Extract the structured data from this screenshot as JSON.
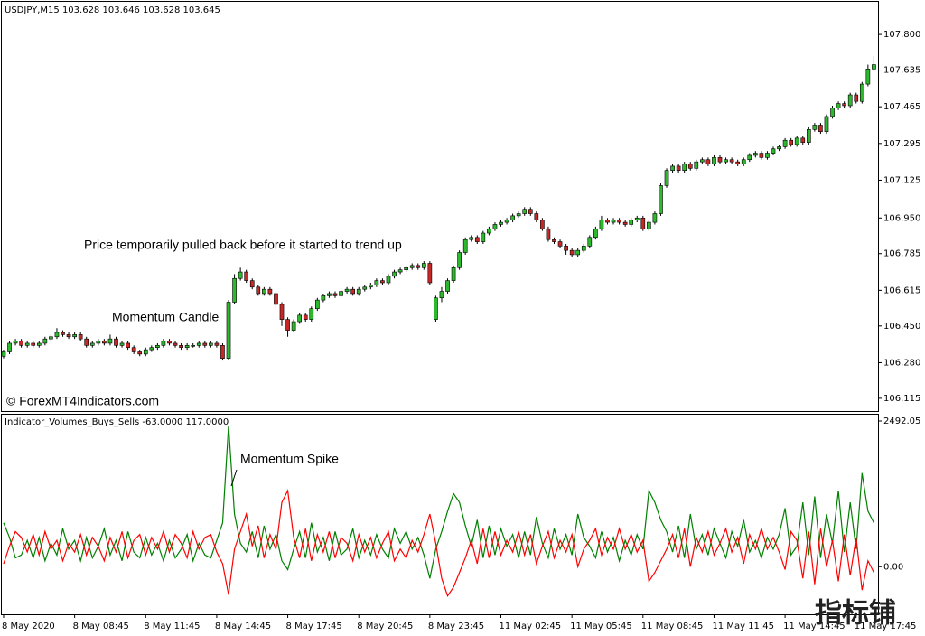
{
  "chart_data": [
    {
      "type": "candlestick",
      "title": "USDJPY,M15  103.628 103.646 103.628 103.645",
      "annotations": [
        "Price temporarily pulled back before it started to trend up",
        "Momentum Candle"
      ],
      "copyright": "© ForexMT4Indicators.com",
      "up_color": "#2eb82e",
      "down_color": "#c62828",
      "xlim": [
        -0.3,
        147.7
      ],
      "ylim": [
        106.056,
        107.951
      ],
      "yticks": [
        {
          "value": 107.8,
          "label": "107.800"
        },
        107.635,
        107.465,
        107.295,
        107.125,
        {
          "value": 106.95,
          "label": "106.950"
        },
        106.785,
        106.615,
        {
          "value": 106.45,
          "label": "106.450"
        },
        {
          "value": 106.28,
          "label": "106.280"
        },
        106.115
      ],
      "open": [
        106.31,
        106.33,
        106.37,
        106.38,
        106.36,
        106.37,
        106.36,
        106.37,
        106.39,
        106.4,
        106.42,
        106.41,
        106.4,
        106.41,
        106.39,
        106.36,
        106.37,
        106.38,
        106.37,
        106.39,
        106.36,
        106.37,
        106.35,
        106.33,
        106.32,
        106.34,
        106.35,
        106.36,
        106.38,
        106.37,
        106.36,
        106.35,
        106.36,
        106.36,
        106.37,
        106.36,
        106.37,
        106.36,
        106.3,
        106.56,
        106.67,
        106.7,
        106.66,
        106.63,
        106.6,
        106.62,
        106.6,
        106.55,
        106.48,
        106.43,
        106.47,
        106.5,
        106.48,
        106.53,
        106.57,
        106.59,
        106.6,
        106.59,
        106.61,
        106.62,
        106.6,
        106.62,
        106.63,
        106.64,
        106.66,
        106.65,
        106.68,
        106.7,
        106.71,
        106.72,
        106.73,
        106.72,
        106.74,
        106.48,
        106.58,
        106.61,
        106.66,
        106.72,
        106.79,
        106.85,
        106.86,
        106.84,
        106.88,
        106.9,
        106.92,
        106.93,
        106.94,
        106.96,
        106.97,
        106.99,
        106.97,
        106.94,
        106.9,
        106.85,
        106.84,
        106.82,
        106.8,
        106.78,
        106.8,
        106.82,
        106.86,
        106.9,
        106.94,
        106.93,
        106.94,
        106.93,
        106.92,
        106.94,
        106.95,
        106.9,
        106.93,
        106.97,
        107.1,
        107.17,
        107.19,
        107.17,
        107.2,
        107.18,
        107.21,
        107.22,
        107.2,
        107.23,
        107.21,
        107.22,
        107.21,
        107.2,
        107.22,
        107.24,
        107.25,
        107.23,
        107.25,
        107.27,
        107.28,
        107.31,
        107.29,
        107.32,
        107.3,
        107.36,
        107.38,
        107.35,
        107.42,
        107.46,
        107.48,
        107.47,
        107.52,
        107.49,
        107.57,
        107.64
      ],
      "high": [
        106.34,
        106.38,
        106.39,
        106.39,
        106.38,
        106.38,
        106.38,
        106.4,
        106.41,
        106.44,
        106.43,
        106.42,
        106.42,
        106.42,
        106.4,
        106.38,
        106.39,
        106.39,
        106.41,
        106.4,
        106.38,
        106.38,
        106.36,
        106.34,
        106.35,
        106.36,
        106.37,
        106.39,
        106.39,
        106.38,
        106.37,
        106.37,
        106.37,
        106.38,
        106.38,
        106.38,
        106.38,
        106.37,
        106.57,
        106.69,
        106.72,
        106.71,
        106.67,
        106.64,
        106.63,
        106.63,
        106.61,
        106.56,
        106.49,
        106.48,
        106.51,
        106.51,
        106.54,
        106.58,
        106.6,
        106.61,
        106.61,
        106.62,
        106.63,
        106.63,
        106.63,
        106.64,
        106.65,
        106.67,
        106.67,
        106.69,
        106.71,
        106.72,
        106.73,
        106.74,
        106.74,
        106.75,
        106.75,
        106.59,
        106.63,
        106.67,
        106.73,
        106.8,
        106.86,
        106.87,
        106.87,
        106.89,
        106.91,
        106.93,
        106.94,
        106.95,
        106.97,
        106.98,
        107.0,
        107.0,
        106.98,
        106.95,
        106.91,
        106.86,
        106.85,
        106.83,
        106.81,
        106.81,
        106.83,
        106.87,
        106.91,
        106.96,
        106.95,
        106.95,
        106.95,
        106.94,
        106.95,
        106.96,
        106.96,
        106.94,
        106.98,
        107.11,
        107.18,
        107.2,
        107.2,
        107.21,
        107.21,
        107.22,
        107.23,
        107.23,
        107.24,
        107.24,
        107.23,
        107.23,
        107.22,
        107.23,
        107.25,
        107.26,
        107.26,
        107.26,
        107.28,
        107.29,
        107.32,
        107.32,
        107.33,
        107.33,
        107.37,
        107.39,
        107.39,
        107.43,
        107.47,
        107.49,
        107.49,
        107.53,
        107.53,
        107.58,
        107.66,
        107.7
      ],
      "low": [
        106.3,
        106.32,
        106.36,
        106.35,
        106.35,
        106.35,
        106.35,
        106.36,
        106.38,
        106.39,
        106.4,
        106.39,
        106.39,
        106.38,
        106.35,
        106.35,
        106.36,
        106.36,
        106.36,
        106.35,
        106.35,
        106.34,
        106.32,
        106.31,
        106.31,
        106.33,
        106.34,
        106.35,
        106.36,
        106.35,
        106.34,
        106.34,
        106.35,
        106.35,
        106.35,
        106.35,
        106.35,
        106.29,
        106.29,
        106.55,
        106.66,
        106.65,
        106.62,
        106.59,
        106.59,
        106.59,
        106.53,
        106.45,
        106.4,
        106.42,
        106.46,
        106.47,
        106.47,
        106.52,
        106.56,
        106.58,
        106.58,
        106.58,
        106.6,
        106.59,
        106.59,
        106.61,
        106.62,
        106.63,
        106.64,
        106.64,
        106.67,
        106.69,
        106.7,
        106.71,
        106.71,
        106.71,
        106.64,
        106.47,
        106.56,
        106.6,
        106.65,
        106.71,
        106.78,
        106.84,
        106.83,
        106.83,
        106.87,
        106.89,
        106.91,
        106.92,
        106.93,
        106.95,
        106.96,
        106.96,
        106.93,
        106.89,
        106.84,
        106.83,
        106.81,
        106.78,
        106.77,
        106.77,
        106.79,
        106.81,
        106.85,
        106.89,
        106.92,
        106.92,
        106.92,
        106.91,
        106.91,
        106.93,
        106.89,
        106.89,
        106.92,
        106.96,
        107.09,
        107.16,
        107.16,
        107.16,
        107.17,
        107.17,
        107.2,
        107.19,
        107.19,
        107.2,
        107.2,
        107.2,
        107.19,
        107.19,
        107.21,
        107.23,
        107.22,
        107.22,
        107.24,
        107.26,
        107.27,
        107.28,
        107.28,
        107.29,
        107.29,
        107.35,
        107.34,
        107.34,
        107.41,
        107.45,
        107.46,
        107.46,
        107.48,
        107.48,
        107.56,
        107.63
      ],
      "close": [
        106.33,
        106.37,
        106.38,
        106.36,
        106.37,
        106.36,
        106.37,
        106.39,
        106.4,
        106.42,
        106.41,
        106.4,
        106.41,
        106.39,
        106.36,
        106.37,
        106.38,
        106.37,
        106.39,
        106.36,
        106.37,
        106.35,
        106.33,
        106.32,
        106.34,
        106.35,
        106.36,
        106.38,
        106.37,
        106.36,
        106.35,
        106.36,
        106.36,
        106.37,
        106.36,
        106.37,
        106.36,
        106.3,
        106.56,
        106.67,
        106.7,
        106.66,
        106.63,
        106.6,
        106.62,
        106.6,
        106.55,
        106.48,
        106.43,
        106.47,
        106.5,
        106.48,
        106.53,
        106.57,
        106.59,
        106.6,
        106.59,
        106.61,
        106.62,
        106.6,
        106.62,
        106.63,
        106.64,
        106.66,
        106.65,
        106.68,
        106.7,
        106.71,
        106.72,
        106.73,
        106.72,
        106.74,
        106.65,
        106.58,
        106.61,
        106.66,
        106.72,
        106.79,
        106.85,
        106.86,
        106.84,
        106.88,
        106.9,
        106.92,
        106.93,
        106.94,
        106.96,
        106.97,
        106.99,
        106.97,
        106.94,
        106.9,
        106.85,
        106.84,
        106.82,
        106.8,
        106.78,
        106.8,
        106.82,
        106.86,
        106.9,
        106.94,
        106.93,
        106.94,
        106.93,
        106.92,
        106.94,
        106.95,
        106.9,
        106.93,
        106.97,
        107.1,
        107.17,
        107.19,
        107.17,
        107.2,
        107.18,
        107.21,
        107.22,
        107.2,
        107.23,
        107.21,
        107.22,
        107.21,
        107.2,
        107.22,
        107.24,
        107.25,
        107.23,
        107.25,
        107.27,
        107.28,
        107.31,
        107.29,
        107.32,
        107.3,
        107.36,
        107.38,
        107.35,
        107.42,
        107.46,
        107.48,
        107.47,
        107.52,
        107.49,
        107.57,
        107.64,
        107.66
      ]
    },
    {
      "type": "line",
      "title": "Indicator_Volumes_Buys_Sells -63.0000 117.0000",
      "annotation": "Momentum Spike",
      "xlim": [
        -0.3,
        147.7
      ],
      "ylim": [
        -815,
        2600
      ],
      "yticks": [
        {
          "value": 2492.05,
          "label": "2492.05"
        },
        {
          "value": 0,
          "label": "0.00"
        }
      ],
      "xticks": [
        {
          "value": 0,
          "label": "8 May 2020"
        },
        {
          "value": 12,
          "label": "8 May 08:45"
        },
        {
          "value": 24,
          "label": "8 May 11:45"
        },
        {
          "value": 36,
          "label": "8 May 14:45"
        },
        {
          "value": 48,
          "label": "8 May 17:45"
        },
        {
          "value": 60,
          "label": "8 May 20:45"
        },
        {
          "value": 72,
          "label": "8 May 23:45"
        },
        {
          "value": 84,
          "label": "11 May 02:45"
        },
        {
          "value": 96,
          "label": "11 May 05:45"
        },
        {
          "value": 108,
          "label": "11 May 08:45"
        },
        {
          "value": 120,
          "label": "11 May 11:45"
        },
        {
          "value": 132,
          "label": "11 May 14:45"
        },
        {
          "value": 144,
          "label": "11 May 17:45"
        }
      ],
      "series": [
        {
          "color": "#008000",
          "values": [
            750,
            500,
            150,
            200,
            450,
            150,
            500,
            100,
            400,
            200,
            650,
            300,
            450,
            100,
            500,
            150,
            350,
            650,
            200,
            450,
            100,
            600,
            250,
            150,
            500,
            200,
            400,
            100,
            450,
            150,
            300,
            550,
            100,
            400,
            200,
            150,
            450,
            750,
            2415,
            900,
            400,
            250,
            600,
            150,
            700,
            300,
            550,
            100,
            -50,
            300,
            600,
            150,
            750,
            250,
            500,
            100,
            600,
            200,
            300,
            650,
            150,
            450,
            200,
            550,
            300,
            150,
            650,
            400,
            600,
            300,
            500,
            200,
            -200,
            300,
            600,
            950,
            1250,
            1100,
            700,
            350,
            800,
            150,
            700,
            200,
            650,
            350,
            550,
            150,
            600,
            200,
            850,
            400,
            150,
            650,
            300,
            550,
            200,
            900,
            500,
            350,
            150,
            600,
            250,
            500,
            100,
            450,
            200,
            550,
            300,
            1300,
            1100,
            800,
            600,
            250,
            700,
            150,
            900,
            300,
            550,
            200,
            650,
            400,
            150,
            600,
            350,
            800,
            250,
            450,
            150,
            500,
            300,
            550,
            1000,
            200,
            350,
            1100,
            200,
            1200,
            150,
            900,
            400,
            1300,
            250,
            1100,
            300,
            1600,
            950,
            750
          ]
        },
        {
          "color": "#ff0000",
          "values": [
            50,
            350,
            600,
            500,
            250,
            550,
            200,
            600,
            300,
            450,
            100,
            400,
            250,
            550,
            200,
            500,
            350,
            100,
            500,
            250,
            600,
            150,
            450,
            550,
            200,
            500,
            300,
            600,
            250,
            550,
            400,
            150,
            600,
            300,
            500,
            550,
            250,
            50,
            -480,
            300,
            600,
            900,
            350,
            700,
            150,
            550,
            300,
            1100,
            1300,
            500,
            150,
            650,
            100,
            550,
            250,
            600,
            150,
            500,
            400,
            100,
            550,
            250,
            500,
            150,
            400,
            600,
            100,
            300,
            150,
            450,
            250,
            550,
            900,
            400,
            -200,
            -500,
            -350,
            -100,
            150,
            450,
            50,
            650,
            150,
            600,
            200,
            450,
            250,
            600,
            200,
            550,
            50,
            350,
            600,
            150,
            450,
            250,
            550,
            0,
            300,
            450,
            650,
            200,
            500,
            300,
            650,
            300,
            550,
            250,
            450,
            -250,
            -100,
            100,
            300,
            550,
            150,
            650,
            0,
            500,
            250,
            600,
            200,
            400,
            650,
            250,
            500,
            50,
            550,
            300,
            650,
            300,
            500,
            250,
            -50,
            600,
            450,
            -200,
            600,
            -300,
            650,
            0,
            450,
            -250,
            550,
            -150,
            500,
            -400,
            100,
            -100
          ]
        }
      ]
    }
  ],
  "watermark": "指标铺"
}
